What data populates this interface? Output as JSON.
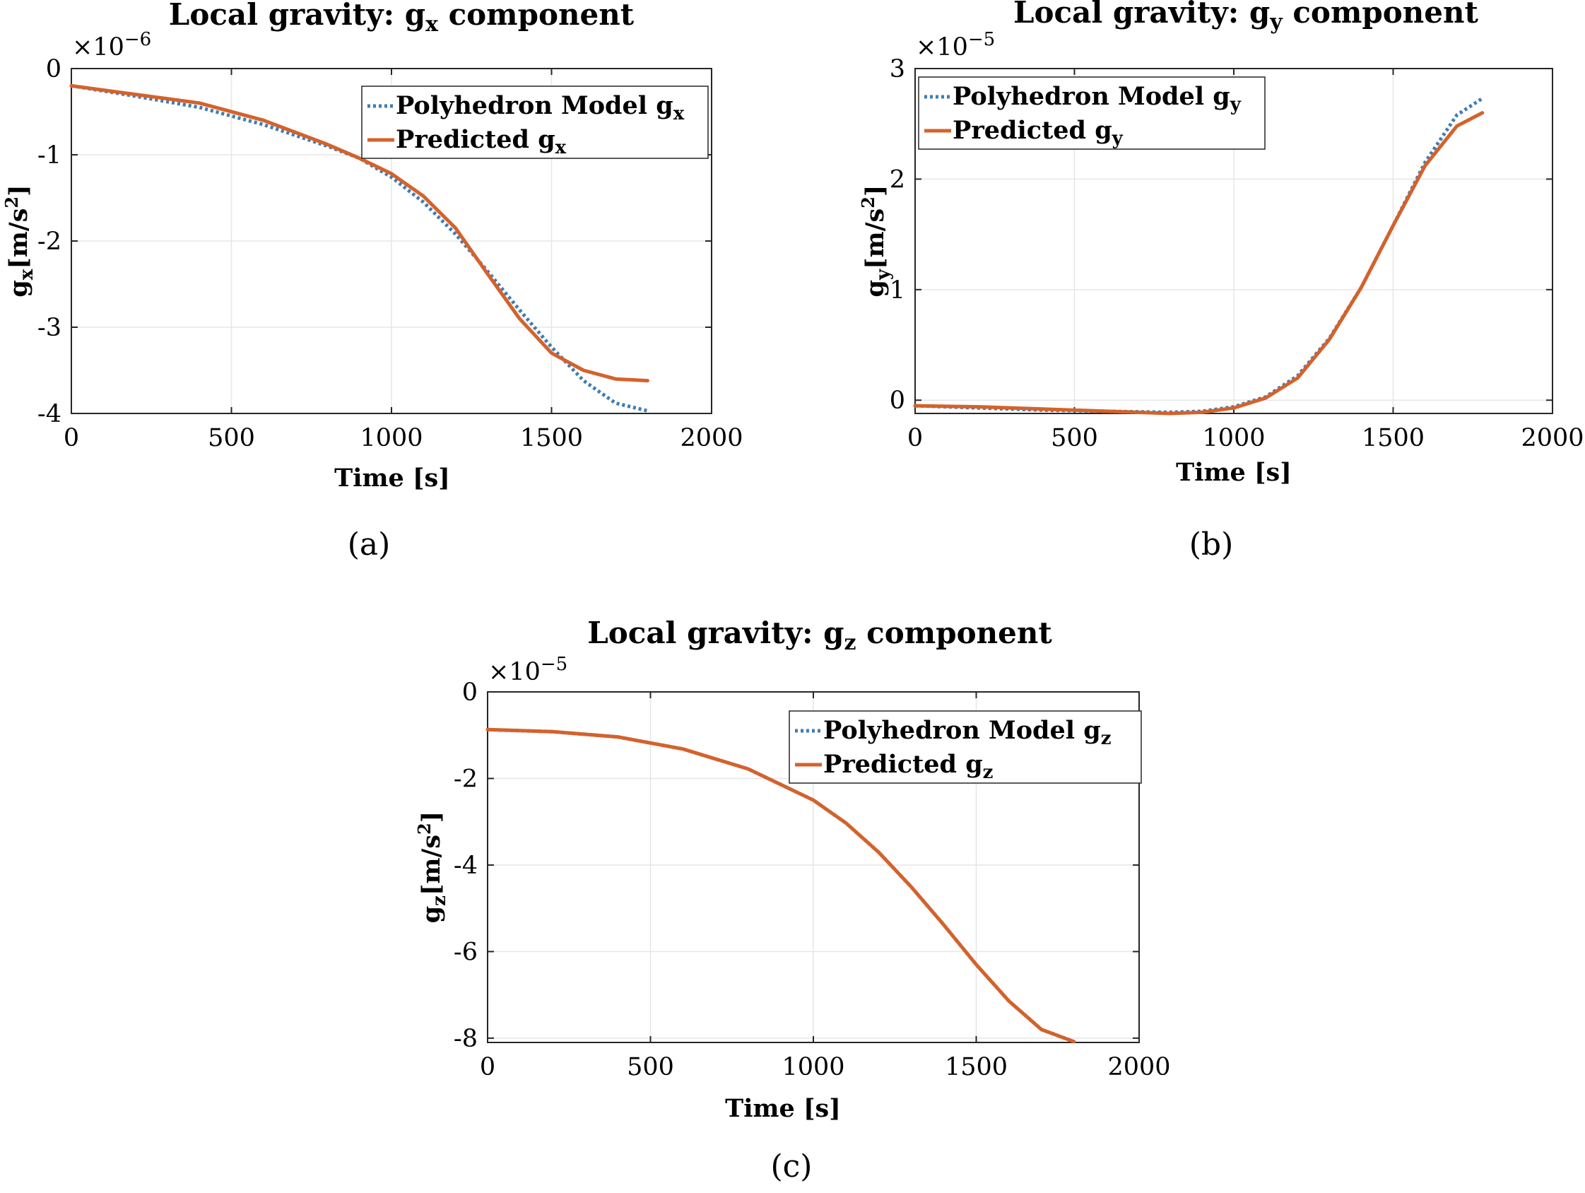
{
  "colors": {
    "polyhedron": "#3f7cb4",
    "predicted": "#d4622b",
    "axis": "#262626",
    "grid": "#e6e6e6"
  },
  "chart_data": [
    {
      "type": "line",
      "panel": "(a)",
      "title_main": "Local gravity: g",
      "title_sub": "x",
      "title_tail": " component",
      "xlabel": "Time [s]",
      "ylabel_main": "g",
      "ylabel_sub": "x",
      "ylabel_tail": "[m/s",
      "ylabel_sup": "2",
      "ylabel_close": "]",
      "exponent_base": "×10",
      "exponent_power": "−6",
      "xlim": [
        0,
        2000
      ],
      "ylim": [
        -4,
        0
      ],
      "xticks": [
        0,
        500,
        1000,
        1500,
        2000
      ],
      "yticks": [
        -4,
        -3,
        -2,
        -1,
        0
      ],
      "xtick_labels": [
        "0",
        "500",
        "1000",
        "1500",
        "2000"
      ],
      "ytick_labels": [
        "-4",
        "-3",
        "-2",
        "-1",
        "0"
      ],
      "legend_position": "top-right",
      "series": [
        {
          "name_main": "Polyhedron Model g",
          "name_sub": "x",
          "style": "dotted",
          "x": [
            0,
            200,
            400,
            600,
            800,
            900,
            1000,
            1100,
            1200,
            1300,
            1400,
            1500,
            1600,
            1700,
            1800
          ],
          "y": [
            -0.2,
            -0.32,
            -0.45,
            -0.65,
            -0.9,
            -1.04,
            -1.26,
            -1.55,
            -1.92,
            -2.35,
            -2.8,
            -3.23,
            -3.62,
            -3.88,
            -3.97
          ]
        },
        {
          "name_main": "Predicted g",
          "name_sub": "x",
          "style": "solid",
          "x": [
            0,
            200,
            400,
            600,
            800,
            900,
            1000,
            1100,
            1200,
            1300,
            1400,
            1500,
            1600,
            1700,
            1800
          ],
          "y": [
            -0.2,
            -0.3,
            -0.4,
            -0.6,
            -0.88,
            -1.04,
            -1.22,
            -1.48,
            -1.85,
            -2.38,
            -2.9,
            -3.3,
            -3.5,
            -3.6,
            -3.62
          ]
        }
      ]
    },
    {
      "type": "line",
      "panel": "(b)",
      "title_main": "Local gravity: g",
      "title_sub": "y",
      "title_tail": " component",
      "xlabel": "Time [s]",
      "ylabel_main": "g",
      "ylabel_sub": "y",
      "ylabel_tail": "[m/s",
      "ylabel_sup": "2",
      "ylabel_close": "]",
      "exponent_base": "×10",
      "exponent_power": "−5",
      "xlim": [
        0,
        2000
      ],
      "ylim": [
        -0.12,
        3
      ],
      "xticks": [
        0,
        500,
        1000,
        1500,
        2000
      ],
      "yticks": [
        0,
        1,
        2,
        3
      ],
      "xtick_labels": [
        "0",
        "500",
        "1000",
        "1500",
        "2000"
      ],
      "ytick_labels": [
        "0",
        "1",
        "2",
        "3"
      ],
      "legend_position": "top-left",
      "series": [
        {
          "name_main": "Polyhedron Model g",
          "name_sub": "y",
          "style": "dotted",
          "x": [
            0,
            200,
            400,
            600,
            800,
            900,
            1000,
            1100,
            1200,
            1300,
            1400,
            1500,
            1600,
            1700,
            1780
          ],
          "y": [
            -0.05,
            -0.07,
            -0.09,
            -0.1,
            -0.11,
            -0.1,
            -0.06,
            0.03,
            0.22,
            0.56,
            1.02,
            1.58,
            2.15,
            2.58,
            2.73
          ]
        },
        {
          "name_main": "Predicted g",
          "name_sub": "y",
          "style": "solid",
          "x": [
            0,
            200,
            400,
            600,
            800,
            900,
            1000,
            1100,
            1200,
            1300,
            1400,
            1500,
            1600,
            1700,
            1780
          ],
          "y": [
            -0.05,
            -0.06,
            -0.08,
            -0.1,
            -0.12,
            -0.11,
            -0.07,
            0.02,
            0.2,
            0.55,
            1.02,
            1.58,
            2.12,
            2.48,
            2.6
          ]
        }
      ]
    },
    {
      "type": "line",
      "panel": "(c)",
      "title_main": "Local gravity: g",
      "title_sub": "z",
      "title_tail": " component",
      "xlabel": "Time [s]",
      "ylabel_main": "g",
      "ylabel_sub": "z",
      "ylabel_tail": "[m/s",
      "ylabel_sup": "2",
      "ylabel_close": "]",
      "exponent_base": "×10",
      "exponent_power": "−5",
      "xlim": [
        0,
        2000
      ],
      "ylim": [
        -8.1,
        0
      ],
      "xticks": [
        0,
        500,
        1000,
        1500,
        2000
      ],
      "yticks": [
        -8,
        -6,
        -4,
        -2,
        0
      ],
      "xtick_labels": [
        "0",
        "500",
        "1000",
        "1500",
        "2000"
      ],
      "ytick_labels": [
        "-8",
        "-6",
        "-4",
        "-2",
        "0"
      ],
      "legend_position": "top-right",
      "series": [
        {
          "name_main": "Polyhedron Model g",
          "name_sub": "z",
          "style": "dotted",
          "x": [
            0,
            200,
            400,
            600,
            800,
            1000,
            1100,
            1200,
            1300,
            1400,
            1500,
            1600,
            1700,
            1800
          ],
          "y": [
            -0.87,
            -0.92,
            -1.04,
            -1.32,
            -1.78,
            -2.5,
            -3.03,
            -3.7,
            -4.5,
            -5.38,
            -6.3,
            -7.14,
            -7.8,
            -8.08
          ]
        },
        {
          "name_main": "Predicted g",
          "name_sub": "z",
          "style": "solid",
          "x": [
            0,
            200,
            400,
            600,
            800,
            1000,
            1100,
            1200,
            1300,
            1400,
            1500,
            1600,
            1700,
            1800
          ],
          "y": [
            -0.87,
            -0.92,
            -1.04,
            -1.32,
            -1.78,
            -2.5,
            -3.03,
            -3.7,
            -4.5,
            -5.38,
            -6.3,
            -7.14,
            -7.8,
            -8.08
          ]
        }
      ]
    }
  ]
}
